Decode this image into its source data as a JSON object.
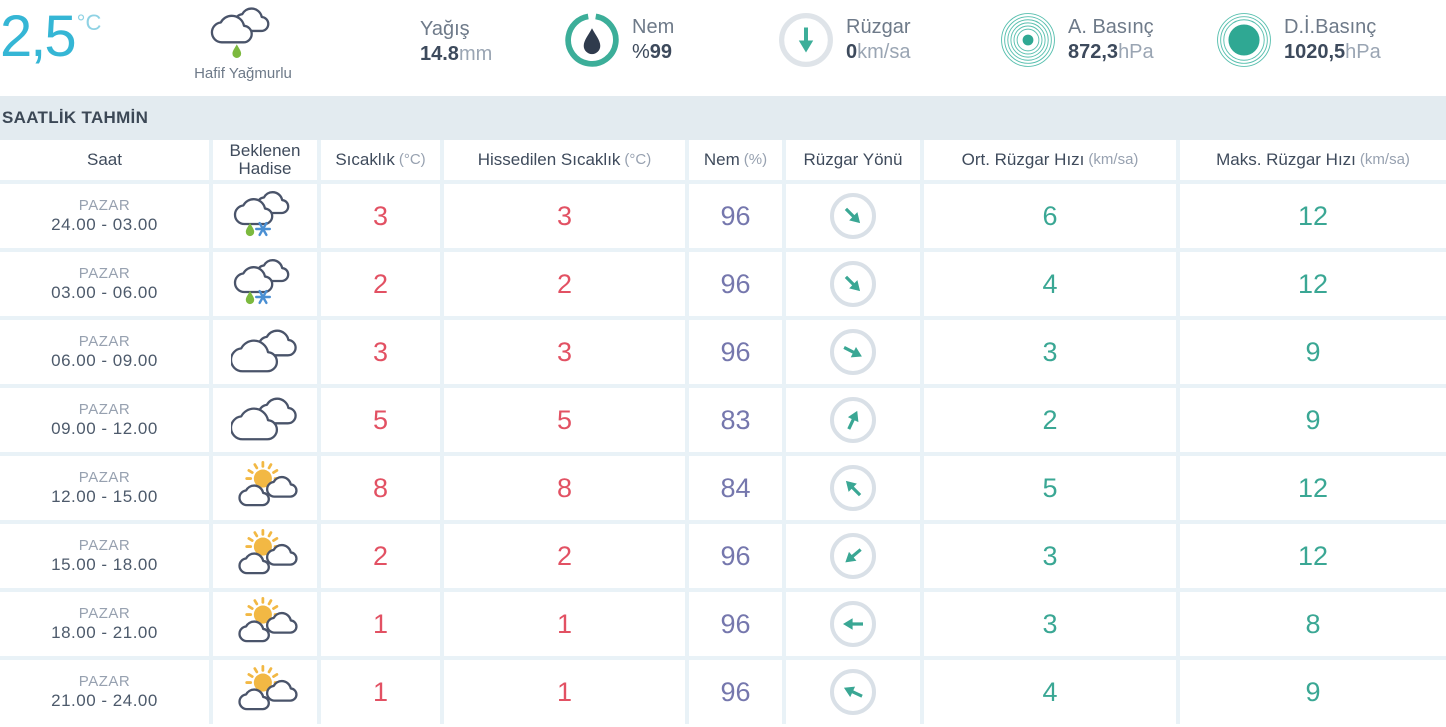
{
  "current": {
    "temp": "2,5",
    "temp_unit": "°C",
    "condition": {
      "label": "Hafif Yağmurlu",
      "icon": "rain-cloud-icon"
    },
    "precip": {
      "label": "Yağış",
      "value": "14.8",
      "unit": "mm"
    },
    "humidity": {
      "label": "Nem",
      "prefix": "%",
      "value": "99",
      "unit": "",
      "icon": "humidity-ring-icon",
      "percent": 99
    },
    "wind": {
      "label": "Rüzgar",
      "value": "0",
      "unit": "km/sa",
      "icon": "wind-down-arrow-icon"
    },
    "pressure_actual": {
      "label": "A. Basınç",
      "value": "872,3",
      "unit": "hPa",
      "icon": "pressure-rings-dot-icon"
    },
    "pressure_sea": {
      "label": "D.İ.Basınç",
      "value": "1020,5",
      "unit": "hPa",
      "icon": "pressure-rings-filled-icon"
    }
  },
  "section": {
    "title": "SAATLİK TAHMİN"
  },
  "table": {
    "columns": [
      {
        "label": "Saat",
        "unit": ""
      },
      {
        "label": "Beklenen Hadise",
        "unit": ""
      },
      {
        "label": "Sıcaklık",
        "unit": "(°C)"
      },
      {
        "label": "Hissedilen Sıcaklık",
        "unit": "(°C)"
      },
      {
        "label": "Nem",
        "unit": "(%)"
      },
      {
        "label": "Rüzgar Yönü",
        "unit": ""
      },
      {
        "label": "Ort. Rüzgar Hızı",
        "unit": "(km/sa)"
      },
      {
        "label": "Maks. Rüzgar Hızı",
        "unit": "(km/sa)"
      }
    ],
    "rows": [
      {
        "day": "PAZAR",
        "time": "24.00 - 03.00",
        "icon": "sleet-cloud-icon",
        "temp": "3",
        "feels": "3",
        "humidity": "96",
        "wind_dir": "SE",
        "wind_rotation": 45,
        "avg_wind": "6",
        "max_wind": "12"
      },
      {
        "day": "PAZAR",
        "time": "03.00 - 06.00",
        "icon": "sleet-cloud-icon",
        "temp": "2",
        "feels": "2",
        "humidity": "96",
        "wind_dir": "SE",
        "wind_rotation": 45,
        "avg_wind": "4",
        "max_wind": "12"
      },
      {
        "day": "PAZAR",
        "time": "06.00 - 09.00",
        "icon": "cloudy-icon",
        "temp": "3",
        "feels": "3",
        "humidity": "96",
        "wind_dir": "ESE",
        "wind_rotation": 27,
        "avg_wind": "3",
        "max_wind": "9"
      },
      {
        "day": "PAZAR",
        "time": "09.00 - 12.00",
        "icon": "cloudy-icon",
        "temp": "5",
        "feels": "5",
        "humidity": "83",
        "wind_dir": "NNE",
        "wind_rotation": -65,
        "avg_wind": "2",
        "max_wind": "9"
      },
      {
        "day": "PAZAR",
        "time": "12.00 - 15.00",
        "icon": "partly-sunny-icon",
        "temp": "8",
        "feels": "8",
        "humidity": "84",
        "wind_dir": "NW",
        "wind_rotation": -135,
        "avg_wind": "5",
        "max_wind": "12"
      },
      {
        "day": "PAZAR",
        "time": "15.00 - 18.00",
        "icon": "partly-sunny-icon",
        "temp": "2",
        "feels": "2",
        "humidity": "96",
        "wind_dir": "SW",
        "wind_rotation": 140,
        "avg_wind": "3",
        "max_wind": "12"
      },
      {
        "day": "PAZAR",
        "time": "18.00 - 21.00",
        "icon": "partly-sunny-icon",
        "temp": "1",
        "feels": "1",
        "humidity": "96",
        "wind_dir": "W",
        "wind_rotation": 180,
        "avg_wind": "3",
        "max_wind": "8"
      },
      {
        "day": "PAZAR",
        "time": "21.00 - 24.00",
        "icon": "partly-sunny-icon",
        "temp": "1",
        "feels": "1",
        "humidity": "96",
        "wind_dir": "WNW",
        "wind_rotation": -155,
        "avg_wind": "4",
        "max_wind": "9"
      }
    ]
  },
  "colors": {
    "accent_cyan": "#35b6d5",
    "accent_teal": "#3aa794",
    "temp_red": "#e25163",
    "humidity_purple": "#7577ad",
    "cloud_outline": "#4a546a",
    "sun_yellow": "#f2b844",
    "drop_green": "#7cb93e",
    "snow_blue": "#4a8fd3",
    "section_bg": "#e3ebf0",
    "grid_bg": "#e9f2f7"
  }
}
